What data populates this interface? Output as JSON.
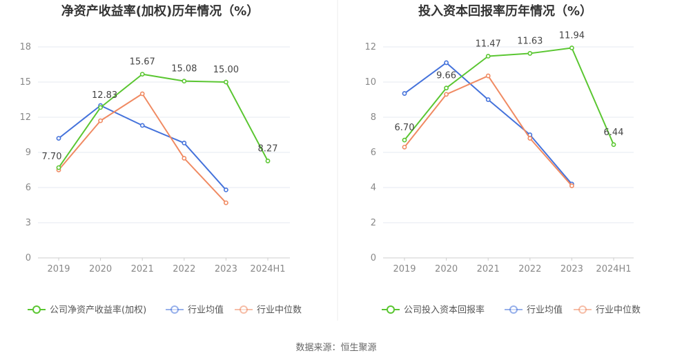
{
  "chart_data": [
    {
      "type": "line",
      "title": "净资产收益率(加权)历年情况（%）",
      "categories": [
        "2019",
        "2020",
        "2021",
        "2022",
        "2023",
        "2024H1"
      ],
      "ylim": [
        0,
        18
      ],
      "yticks": [
        0,
        3,
        6,
        9,
        12,
        15,
        18
      ],
      "grid": true,
      "legend_position": "bottom",
      "series": [
        {
          "name": "公司净资产收益率(加权)",
          "color": "#5ac631",
          "labeled": true,
          "values": [
            7.7,
            12.83,
            15.67,
            15.08,
            15.0,
            8.27
          ]
        },
        {
          "name": "行业均值",
          "color": "#4472db",
          "labeled": false,
          "values": [
            10.2,
            13.0,
            11.3,
            9.8,
            5.8,
            null
          ]
        },
        {
          "name": "行业中位数",
          "color": "#f08a62",
          "labeled": false,
          "values": [
            7.5,
            11.7,
            14.0,
            8.5,
            4.7,
            null
          ]
        }
      ]
    },
    {
      "type": "line",
      "title": "投入资本回报率历年情况（%）",
      "categories": [
        "2019",
        "2020",
        "2021",
        "2022",
        "2023",
        "2024H1"
      ],
      "ylim": [
        0,
        12
      ],
      "yticks": [
        0,
        2,
        4,
        6,
        8,
        10,
        12
      ],
      "grid": true,
      "legend_position": "bottom",
      "series": [
        {
          "name": "公司投入资本回报率",
          "color": "#5ac631",
          "labeled": true,
          "values": [
            6.7,
            9.66,
            11.47,
            11.63,
            11.94,
            6.44
          ]
        },
        {
          "name": "行业均值",
          "color": "#4472db",
          "labeled": false,
          "values": [
            9.35,
            11.1,
            9.0,
            7.0,
            4.2,
            null
          ]
        },
        {
          "name": "行业中位数",
          "color": "#f08a62",
          "labeled": false,
          "values": [
            6.3,
            9.3,
            10.35,
            6.8,
            4.1,
            null
          ]
        }
      ]
    }
  ],
  "source": "数据来源：恒生聚源"
}
